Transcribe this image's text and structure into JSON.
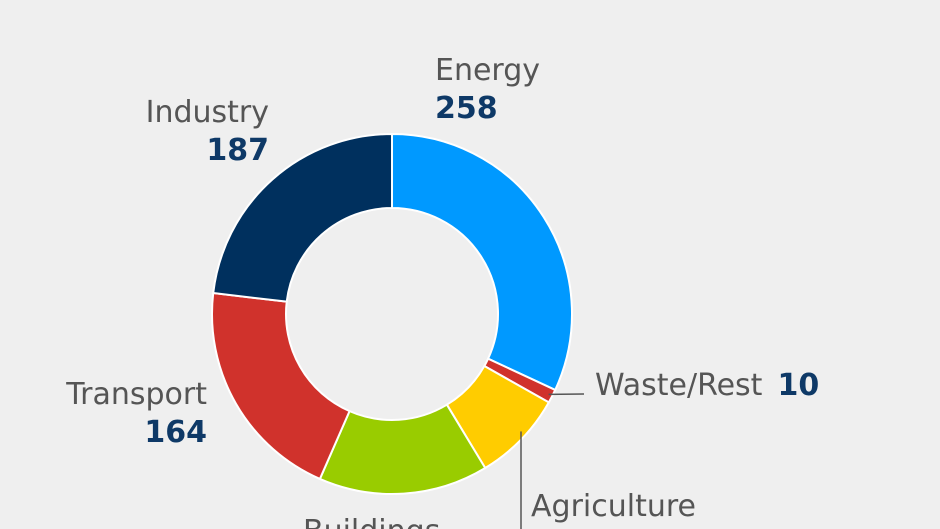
{
  "chart_data": {
    "type": "pie",
    "variant": "donut",
    "categories": [
      "Energy",
      "Waste/Rest",
      "Agriculture",
      "Buildings",
      "Transport",
      "Industry"
    ],
    "values": [
      258,
      10,
      66,
      123,
      164,
      187
    ],
    "value_labels": [
      "258",
      "10",
      "",
      "",
      "164",
      "187"
    ],
    "colors": [
      "#0099ff",
      "#d0322c",
      "#ffcc00",
      "#99cc00",
      "#d0322c",
      "#00305e"
    ],
    "title": "",
    "legend": "none"
  }
}
